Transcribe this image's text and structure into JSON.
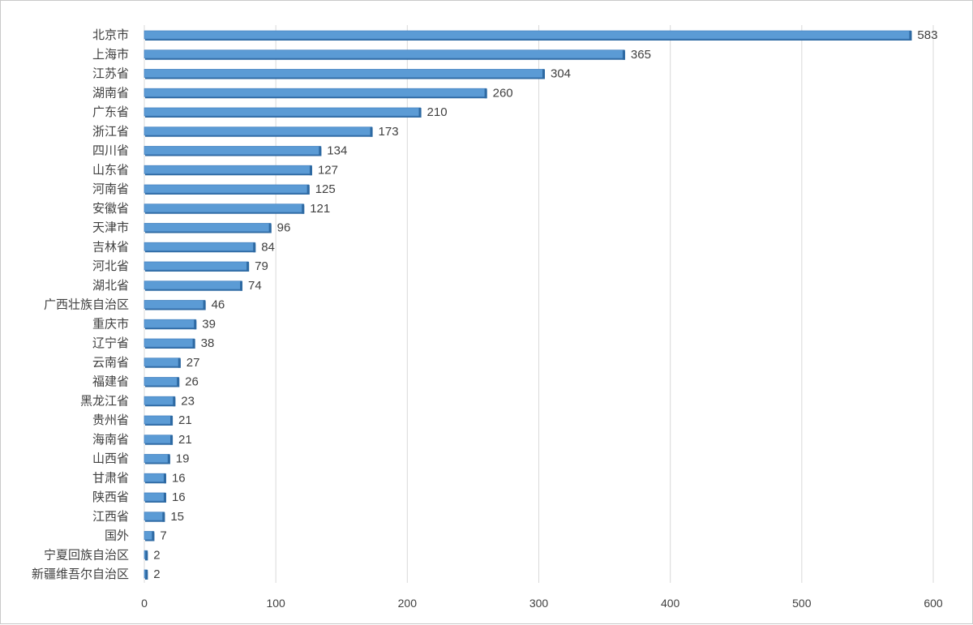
{
  "chart_data": {
    "type": "bar",
    "orientation": "horizontal",
    "title": "",
    "xlabel": "",
    "ylabel": "",
    "categories": [
      "北京市",
      "上海市",
      "江苏省",
      "湖南省",
      "广东省",
      "浙江省",
      "四川省",
      "山东省",
      "河南省",
      "安徽省",
      "天津市",
      "吉林省",
      "河北省",
      "湖北省",
      "广西壮族自治区",
      "重庆市",
      "辽宁省",
      "云南省",
      "福建省",
      "黑龙江省",
      "贵州省",
      "海南省",
      "山西省",
      "甘肃省",
      "陕西省",
      "江西省",
      "国外",
      "宁夏回族自治区",
      "新疆维吾尔自治区"
    ],
    "values": [
      583,
      365,
      304,
      260,
      210,
      173,
      134,
      127,
      125,
      121,
      96,
      84,
      79,
      74,
      46,
      39,
      38,
      27,
      26,
      23,
      21,
      21,
      19,
      16,
      16,
      15,
      7,
      2,
      2
    ],
    "xlim": [
      0,
      600
    ],
    "xticks": [
      0,
      100,
      200,
      300,
      400,
      500,
      600
    ],
    "grid": true,
    "legend": "none",
    "bar_color": "#5b9bd5",
    "bar_shadow_color": "#2e6aa3",
    "data_labels": true
  }
}
